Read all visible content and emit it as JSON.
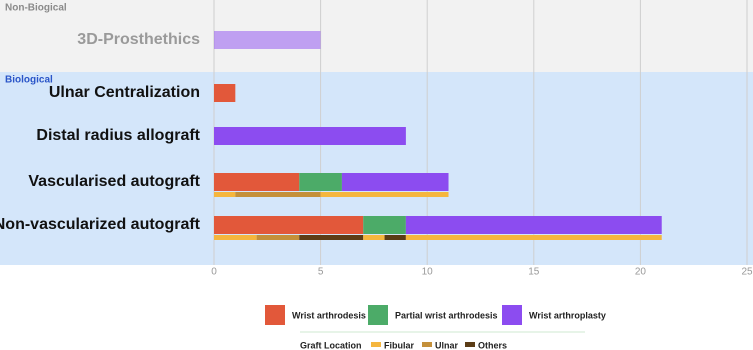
{
  "chart_data": {
    "type": "stacked-barh",
    "categories": [
      "3D-Prosthethics",
      "Ulnar Centralization",
      "Distal radius allograft",
      "Vascularised autograft",
      "Non-vascularized autograft"
    ],
    "groups": [
      {
        "label": "Non-Biogical",
        "categories": [
          0
        ],
        "background": "#f2f2f2",
        "label_color": "#8a8a8a",
        "category_color": "#9a9a9a",
        "faded": true
      },
      {
        "label": "Biological",
        "categories": [
          1,
          2,
          3,
          4
        ],
        "background": "#d4e6fa",
        "label_color": "#2a55c8",
        "category_color": "#111111",
        "faded": false
      }
    ],
    "series": [
      {
        "name": "Wrist arthrodesis",
        "color": "#e2583a",
        "values": [
          null,
          1,
          null,
          4,
          7
        ]
      },
      {
        "name": "Partial wrist arthrodesis",
        "color": "#4cab68",
        "values": [
          null,
          null,
          null,
          2,
          2
        ]
      },
      {
        "name": "Wrist arthroplasty",
        "color": "#8c4cf0",
        "values": [
          5,
          null,
          9,
          5,
          12
        ]
      }
    ],
    "graft_location": {
      "title": "Graft Location",
      "series": [
        {
          "name": "Fibular",
          "color": "#f5b63e"
        },
        {
          "name": "Ulnar",
          "color": "#c4903a"
        },
        {
          "name": "Others",
          "color": "#5b3c16"
        }
      ],
      "bars": [
        [],
        [],
        [],
        [
          {
            "series": 0,
            "value": 1
          },
          {
            "series": 1,
            "value": 4
          },
          {
            "series": 0,
            "value": 6
          }
        ],
        [
          {
            "series": 0,
            "value": 2
          },
          {
            "series": 1,
            "value": 2
          },
          {
            "series": 2,
            "value": 3
          },
          {
            "series": 0,
            "value": 1
          },
          {
            "series": 2,
            "value": 1
          },
          {
            "series": 0,
            "value": 12
          }
        ]
      ]
    },
    "xlim": [
      0,
      25
    ],
    "xticks": [
      0,
      5,
      10,
      15,
      20,
      25
    ],
    "grid": true
  }
}
